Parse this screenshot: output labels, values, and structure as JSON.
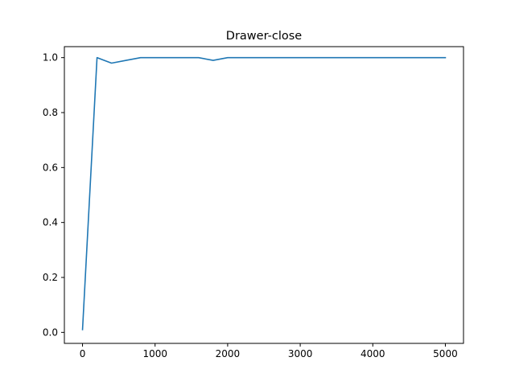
{
  "chart_data": {
    "type": "line",
    "title": "Drawer-close",
    "xlabel": "",
    "ylabel": "",
    "xlim": [
      -250,
      5250
    ],
    "ylim": [
      -0.04,
      1.04
    ],
    "x_ticks": [
      0,
      1000,
      2000,
      3000,
      4000,
      5000
    ],
    "x_tick_labels": [
      "0",
      "1000",
      "2000",
      "3000",
      "4000",
      "5000"
    ],
    "y_ticks": [
      0.0,
      0.2,
      0.4,
      0.6,
      0.8,
      1.0
    ],
    "y_tick_labels": [
      "0.0",
      "0.2",
      "0.4",
      "0.6",
      "0.8",
      "1.0"
    ],
    "grid": false,
    "series": [
      {
        "color": "#1f77b4",
        "x": [
          0,
          200,
          400,
          600,
          800,
          1000,
          1200,
          1400,
          1600,
          1800,
          2000,
          2200,
          2400,
          2600,
          2800,
          3000,
          3200,
          3400,
          3600,
          3800,
          4000,
          4200,
          4400,
          4600,
          4800,
          5000
        ],
        "y": [
          0.01,
          1.0,
          0.98,
          0.99,
          1.0,
          1.0,
          1.0,
          1.0,
          1.0,
          0.99,
          1.0,
          1.0,
          1.0,
          1.0,
          1.0,
          1.0,
          1.0,
          1.0,
          1.0,
          1.0,
          1.0,
          1.0,
          1.0,
          1.0,
          1.0,
          1.0
        ]
      }
    ]
  }
}
